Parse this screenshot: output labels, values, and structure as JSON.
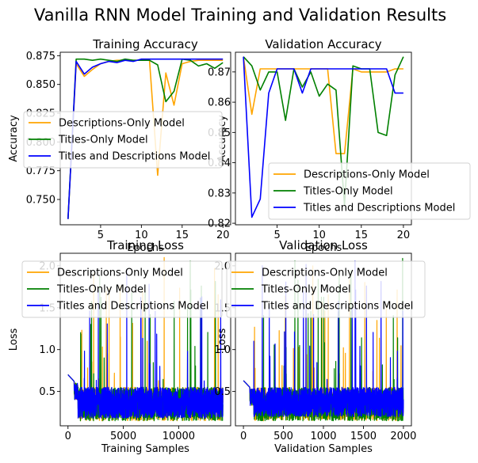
{
  "figure": {
    "suptitle": "Vanilla RNN Model Training and Validation Results"
  },
  "colors": {
    "Descriptions-Only Model": "#ffa500",
    "Titles-Only Model": "#008000",
    "Titles and Descriptions Model": "#0000ff"
  },
  "chart_data": [
    {
      "type": "line",
      "title": "Training Accuracy",
      "xlabel": "Epochs",
      "ylabel": "Accuracy",
      "xlim": [
        0.05,
        20.95
      ],
      "ylim": [
        0.728,
        0.878
      ],
      "xticks": [
        5,
        10,
        15,
        20
      ],
      "yticks": [
        0.75,
        0.775,
        0.8,
        0.825,
        0.85,
        0.875
      ],
      "ytick_labels": [
        "0.750",
        "0.775",
        "0.800",
        "0.825",
        "0.850",
        "0.875"
      ],
      "legend": "center-left",
      "x": [
        1,
        2,
        3,
        4,
        5,
        6,
        7,
        8,
        9,
        10,
        11,
        12,
        13,
        14,
        15,
        16,
        17,
        18,
        19,
        20
      ],
      "series": [
        {
          "name": "Descriptions-Only Model",
          "values": [
            0.733,
            0.868,
            0.857,
            0.863,
            0.868,
            0.87,
            0.871,
            0.871,
            0.871,
            0.871,
            0.871,
            0.771,
            0.86,
            0.832,
            0.868,
            0.87,
            0.871,
            0.871,
            0.871,
            0.871
          ]
        },
        {
          "name": "Titles-Only Model",
          "values": [
            0.733,
            0.872,
            0.872,
            0.871,
            0.872,
            0.871,
            0.87,
            0.872,
            0.871,
            0.871,
            0.871,
            0.867,
            0.835,
            0.844,
            0.872,
            0.871,
            0.866,
            0.868,
            0.864,
            0.869
          ]
        },
        {
          "name": "Titles and Descriptions Model",
          "values": [
            0.733,
            0.87,
            0.859,
            0.865,
            0.868,
            0.87,
            0.869,
            0.871,
            0.87,
            0.872,
            0.872,
            0.872,
            0.872,
            0.872,
            0.872,
            0.872,
            0.872,
            0.872,
            0.872,
            0.872
          ]
        }
      ]
    },
    {
      "type": "line",
      "title": "Validation Accuracy",
      "xlabel": "Epochs",
      "ylabel": "Accuracy",
      "xlim": [
        0.05,
        20.95
      ],
      "ylim": [
        0.8195,
        0.8765
      ],
      "xticks": [
        5,
        10,
        15,
        20
      ],
      "yticks": [
        0.82,
        0.83,
        0.84,
        0.85,
        0.86,
        0.87
      ],
      "ytick_labels": [
        "0.82",
        "0.83",
        "0.84",
        "0.85",
        "0.86",
        "0.87"
      ],
      "legend": "lower-center",
      "x": [
        1,
        2,
        3,
        4,
        5,
        6,
        7,
        8,
        9,
        10,
        11,
        12,
        13,
        14,
        15,
        16,
        17,
        18,
        19,
        20
      ],
      "series": [
        {
          "name": "Descriptions-Only Model",
          "values": [
            0.875,
            0.856,
            0.871,
            0.871,
            0.871,
            0.871,
            0.871,
            0.871,
            0.871,
            0.871,
            0.871,
            0.843,
            0.843,
            0.871,
            0.87,
            0.87,
            0.87,
            0.87,
            0.871,
            0.871
          ]
        },
        {
          "name": "Titles-Only Model",
          "values": [
            0.875,
            0.872,
            0.864,
            0.87,
            0.87,
            0.854,
            0.871,
            0.865,
            0.87,
            0.862,
            0.866,
            0.864,
            0.826,
            0.872,
            0.871,
            0.871,
            0.85,
            0.849,
            0.869,
            0.875
          ]
        },
        {
          "name": "Titles and Descriptions Model",
          "values": [
            0.875,
            0.822,
            0.828,
            0.863,
            0.871,
            0.871,
            0.871,
            0.863,
            0.871,
            0.871,
            0.871,
            0.871,
            0.871,
            0.871,
            0.871,
            0.871,
            0.871,
            0.871,
            0.863,
            0.863
          ]
        }
      ]
    },
    {
      "type": "line",
      "title": "Training Loss",
      "xlabel": "Training Samples",
      "ylabel": "Loss",
      "xlim": [
        -700,
        14700
      ],
      "ylim": [
        0.09,
        2.15
      ],
      "xticks": [
        0,
        5000,
        10000
      ],
      "yticks": [
        0.5,
        1.0,
        1.5,
        2.0
      ],
      "ytick_labels": [
        "0.5",
        "1.0",
        "1.5",
        "2.0"
      ],
      "legend": "upper-center",
      "x_range": [
        0,
        14000
      ],
      "series": [
        {
          "name": "Descriptions-Only Model",
          "start": 0.7,
          "band": [
            0.15,
            0.55
          ]
        },
        {
          "name": "Titles-Only Model",
          "start": 0.7,
          "band": [
            0.15,
            0.55
          ]
        },
        {
          "name": "Titles and Descriptions Model",
          "start": 0.7,
          "band": [
            0.18,
            0.55
          ]
        }
      ]
    },
    {
      "type": "line",
      "title": "Validation Loss",
      "xlabel": "Validation Samples",
      "ylabel": "Loss",
      "xlim": [
        -100,
        2100
      ],
      "ylim": [
        0.09,
        2.15
      ],
      "xticks": [
        0,
        500,
        1000,
        1500,
        2000
      ],
      "yticks": [
        0.5,
        1.0,
        1.5,
        2.0
      ],
      "ytick_labels": [
        "0.5",
        "1.0",
        "1.5",
        "2.0"
      ],
      "legend": "upper-center",
      "x_range": [
        0,
        2000
      ],
      "series": [
        {
          "name": "Descriptions-Only Model",
          "start": 0.63,
          "band": [
            0.15,
            0.55
          ]
        },
        {
          "name": "Titles-Only Model",
          "start": 0.63,
          "band": [
            0.15,
            0.55
          ]
        },
        {
          "name": "Titles and Descriptions Model",
          "start": 0.63,
          "band": [
            0.2,
            0.55
          ]
        }
      ]
    }
  ]
}
